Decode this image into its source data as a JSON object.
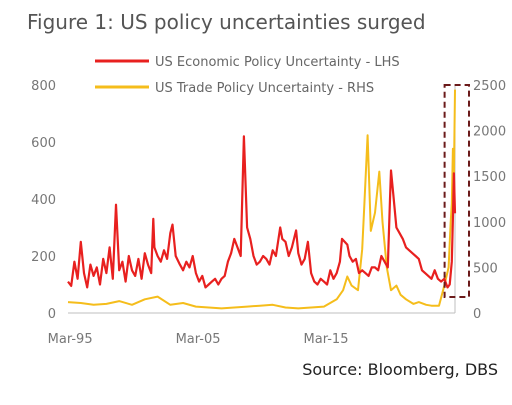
{
  "title": "Figure 1: US policy uncertainties surged",
  "source": "Source: Bloomberg, DBS",
  "colors": {
    "economic": "#e8201f",
    "trade": "#f5bd1b",
    "axis": "#bfbfbf",
    "tick": "#777777",
    "highlight": "#6b1a1a"
  },
  "chart_data": {
    "type": "line",
    "title": "Figure 1: US policy uncertainties surged",
    "x_ticks": [
      "Mar-95",
      "Mar-05",
      "Mar-15"
    ],
    "xlim": [
      "1995-01",
      "2025-04"
    ],
    "ylim_left": [
      0,
      800
    ],
    "yticks_left": [
      "0",
      "200",
      "400",
      "600",
      "800"
    ],
    "ylim_right": [
      0,
      2500
    ],
    "yticks_right": [
      "0",
      "500",
      "1000",
      "1500",
      "2000",
      "2500"
    ],
    "grid": false,
    "legend": "top",
    "highlight_box": {
      "x_range": [
        "2024-10",
        "2025-04"
      ],
      "style": "dashed"
    },
    "series": [
      {
        "name": "US Economic Policy Uncertainty - LHS",
        "axis": "left",
        "x": [
          "1995-01",
          "1995-04",
          "1995-07",
          "1995-10",
          "1996-01",
          "1996-04",
          "1996-07",
          "1996-10",
          "1997-01",
          "1997-04",
          "1997-07",
          "1997-10",
          "1998-01",
          "1998-04",
          "1998-07",
          "1998-10",
          "1999-01",
          "1999-04",
          "1999-07",
          "1999-10",
          "2000-01",
          "2000-04",
          "2000-07",
          "2000-10",
          "2001-01",
          "2001-04",
          "2001-07",
          "2001-09",
          "2001-10",
          "2002-01",
          "2002-04",
          "2002-07",
          "2002-10",
          "2003-01",
          "2003-03",
          "2003-06",
          "2003-10",
          "2004-01",
          "2004-04",
          "2004-07",
          "2004-10",
          "2005-01",
          "2005-04",
          "2005-07",
          "2005-10",
          "2006-01",
          "2006-04",
          "2006-07",
          "2006-10",
          "2007-01",
          "2007-04",
          "2007-07",
          "2007-10",
          "2008-01",
          "2008-04",
          "2008-07",
          "2008-10",
          "2009-01",
          "2009-04",
          "2009-07",
          "2009-10",
          "2010-01",
          "2010-04",
          "2010-07",
          "2010-10",
          "2011-01",
          "2011-04",
          "2011-08",
          "2011-10",
          "2012-01",
          "2012-04",
          "2012-07",
          "2012-11",
          "2013-01",
          "2013-04",
          "2013-07",
          "2013-10",
          "2014-01",
          "2014-04",
          "2014-07",
          "2014-10",
          "2015-01",
          "2015-04",
          "2015-07",
          "2015-10",
          "2016-01",
          "2016-04",
          "2016-06",
          "2016-11",
          "2017-01",
          "2017-04",
          "2017-07",
          "2017-10",
          "2018-01",
          "2018-04",
          "2018-07",
          "2018-10",
          "2019-01",
          "2019-04",
          "2019-07",
          "2019-10",
          "2020-01",
          "2020-03",
          "2020-04",
          "2020-06",
          "2020-09",
          "2020-12",
          "2021-03",
          "2021-06",
          "2021-09",
          "2021-12",
          "2022-03",
          "2022-06",
          "2022-09",
          "2022-12",
          "2023-03",
          "2023-06",
          "2023-09",
          "2023-12",
          "2024-03",
          "2024-06",
          "2024-09",
          "2024-11",
          "2025-01",
          "2025-02",
          "2025-03",
          "2025-04"
        ],
        "values": [
          110,
          95,
          180,
          120,
          250,
          140,
          90,
          170,
          130,
          160,
          100,
          190,
          140,
          230,
          120,
          380,
          150,
          180,
          110,
          200,
          150,
          130,
          190,
          120,
          210,
          170,
          140,
          330,
          230,
          200,
          180,
          220,
          190,
          280,
          310,
          200,
          170,
          150,
          180,
          160,
          200,
          140,
          110,
          130,
          90,
          100,
          110,
          120,
          100,
          120,
          130,
          180,
          210,
          260,
          230,
          200,
          620,
          300,
          260,
          200,
          170,
          180,
          200,
          190,
          170,
          220,
          200,
          300,
          260,
          250,
          200,
          230,
          290,
          210,
          170,
          190,
          250,
          140,
          110,
          100,
          120,
          110,
          100,
          150,
          120,
          140,
          180,
          260,
          240,
          200,
          180,
          190,
          140,
          150,
          140,
          130,
          160,
          160,
          150,
          200,
          180,
          160,
          400,
          500,
          420,
          300,
          280,
          260,
          230,
          220,
          210,
          200,
          190,
          150,
          140,
          130,
          120,
          150,
          120,
          110,
          120,
          90,
          100,
          180,
          330,
          490,
          350
        ]
      },
      {
        "name": "US Trade Policy Uncertainty - RHS",
        "axis": "right",
        "x": [
          "1995-01",
          "1996-01",
          "1997-01",
          "1998-01",
          "1999-01",
          "2000-01",
          "2001-01",
          "2002-01",
          "2003-01",
          "2004-01",
          "2005-01",
          "2006-01",
          "2007-01",
          "2008-01",
          "2009-01",
          "2010-01",
          "2011-01",
          "2012-01",
          "2013-01",
          "2014-01",
          "2015-01",
          "2016-01",
          "2016-07",
          "2016-11",
          "2017-03",
          "2017-09",
          "2018-01",
          "2018-03",
          "2018-06",
          "2018-09",
          "2019-01",
          "2019-05",
          "2019-08",
          "2019-12",
          "2020-04",
          "2020-09",
          "2021-01",
          "2021-06",
          "2022-01",
          "2022-06",
          "2023-01",
          "2023-06",
          "2024-01",
          "2024-06",
          "2024-10",
          "2024-12",
          "2025-01",
          "2025-02",
          "2025-03",
          "2025-04"
        ],
        "values": [
          120,
          110,
          90,
          100,
          130,
          90,
          150,
          180,
          90,
          110,
          70,
          60,
          50,
          60,
          70,
          80,
          90,
          60,
          50,
          60,
          70,
          150,
          250,
          400,
          300,
          250,
          700,
          1200,
          1950,
          900,
          1100,
          1550,
          1000,
          500,
          250,
          300,
          200,
          150,
          100,
          120,
          90,
          80,
          80,
          300,
          500,
          1000,
          1200,
          1800,
          1500,
          2450
        ]
      }
    ]
  }
}
